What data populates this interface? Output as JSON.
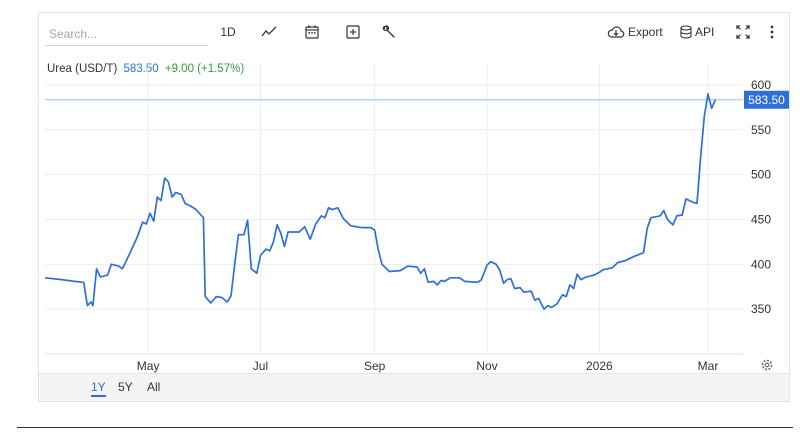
{
  "search": {
    "placeholder": "Search..."
  },
  "toolbar": {
    "interval_label": "1D",
    "export_label": "Export",
    "api_label": "API"
  },
  "legend": {
    "name": "Urea (USD/T)",
    "price": "583.50",
    "change": "+9.00 (+1.57%)"
  },
  "ranges": [
    {
      "label": "1Y",
      "active": true
    },
    {
      "label": "5Y",
      "active": false
    },
    {
      "label": "All",
      "active": false
    }
  ],
  "colors": {
    "line": "#2f6fd6",
    "up": "#2f9e3a",
    "tag": "#2f6fd6"
  },
  "chart_data": {
    "type": "line",
    "title": "",
    "xlabel": "",
    "ylabel": "",
    "y_ticks": [
      350,
      400,
      450,
      500,
      550,
      600
    ],
    "ylim": [
      300,
      610
    ],
    "x_ticks": [
      "May",
      "Jul",
      "Sep",
      "Nov",
      "2026",
      "Mar"
    ],
    "x_tick_dates": [
      "2025-05-01",
      "2025-07-01",
      "2025-09-01",
      "2025-11-01",
      "2026-01-01",
      "2026-03-01"
    ],
    "xlim": [
      "2025-03-06",
      "2026-03-20"
    ],
    "last_value_label": "583.50",
    "last_value": 583.5,
    "grid": true,
    "series": [
      {
        "values": [
          [
            "2025-03-06",
            385
          ],
          [
            "2025-03-15",
            383
          ],
          [
            "2025-03-22",
            381
          ],
          [
            "2025-03-27",
            380
          ],
          [
            "2025-03-29",
            354
          ],
          [
            "2025-03-31",
            358
          ],
          [
            "2025-04-01",
            354
          ],
          [
            "2025-04-03",
            395
          ],
          [
            "2025-04-05",
            386
          ],
          [
            "2025-04-09",
            388
          ],
          [
            "2025-04-11",
            400
          ],
          [
            "2025-04-15",
            398
          ],
          [
            "2025-04-17",
            395
          ],
          [
            "2025-04-21",
            412
          ],
          [
            "2025-04-25",
            430
          ],
          [
            "2025-04-28",
            447
          ],
          [
            "2025-04-30",
            445
          ],
          [
            "2025-05-02",
            457
          ],
          [
            "2025-05-04",
            448
          ],
          [
            "2025-05-06",
            475
          ],
          [
            "2025-05-08",
            471
          ],
          [
            "2025-05-10",
            496
          ],
          [
            "2025-05-12",
            492
          ],
          [
            "2025-05-14",
            475
          ],
          [
            "2025-05-16",
            480
          ],
          [
            "2025-05-19",
            478
          ],
          [
            "2025-05-21",
            468
          ],
          [
            "2025-05-24",
            465
          ],
          [
            "2025-05-27",
            461
          ],
          [
            "2025-05-31",
            452
          ],
          [
            "2025-06-01",
            364
          ],
          [
            "2025-06-04",
            357
          ],
          [
            "2025-06-07",
            364
          ],
          [
            "2025-06-10",
            363
          ],
          [
            "2025-06-13",
            358
          ],
          [
            "2025-06-15",
            365
          ],
          [
            "2025-06-17",
            400
          ],
          [
            "2025-06-19",
            433
          ],
          [
            "2025-06-22",
            433
          ],
          [
            "2025-06-24",
            449
          ],
          [
            "2025-06-26",
            395
          ],
          [
            "2025-06-29",
            390
          ],
          [
            "2025-07-01",
            410
          ],
          [
            "2025-07-04",
            417
          ],
          [
            "2025-07-06",
            415
          ],
          [
            "2025-07-08",
            425
          ],
          [
            "2025-07-10",
            444
          ],
          [
            "2025-07-12",
            435
          ],
          [
            "2025-07-14",
            420
          ],
          [
            "2025-07-16",
            436
          ],
          [
            "2025-07-22",
            436
          ],
          [
            "2025-07-25",
            442
          ],
          [
            "2025-07-28",
            428
          ],
          [
            "2025-07-31",
            445
          ],
          [
            "2025-08-03",
            454
          ],
          [
            "2025-08-05",
            452
          ],
          [
            "2025-08-07",
            463
          ],
          [
            "2025-08-09",
            461
          ],
          [
            "2025-08-12",
            463
          ],
          [
            "2025-08-15",
            451
          ],
          [
            "2025-08-19",
            443
          ],
          [
            "2025-08-25",
            441
          ],
          [
            "2025-08-30",
            441
          ],
          [
            "2025-09-01",
            438
          ],
          [
            "2025-09-03",
            416
          ],
          [
            "2025-09-05",
            400
          ],
          [
            "2025-09-09",
            392
          ],
          [
            "2025-09-15",
            393
          ],
          [
            "2025-09-19",
            398
          ],
          [
            "2025-09-24",
            397
          ],
          [
            "2025-09-26",
            390
          ],
          [
            "2025-09-28",
            395
          ],
          [
            "2025-09-30",
            380
          ],
          [
            "2025-10-03",
            381
          ],
          [
            "2025-10-05",
            377
          ],
          [
            "2025-10-07",
            382
          ],
          [
            "2025-10-09",
            381
          ],
          [
            "2025-10-12",
            385
          ],
          [
            "2025-10-17",
            385
          ],
          [
            "2025-10-20",
            381
          ],
          [
            "2025-10-27",
            380
          ],
          [
            "2025-10-29",
            383
          ],
          [
            "2025-11-01",
            399
          ],
          [
            "2025-11-03",
            403
          ],
          [
            "2025-11-06",
            400
          ],
          [
            "2025-11-08",
            393
          ],
          [
            "2025-11-10",
            379
          ],
          [
            "2025-11-12",
            383
          ],
          [
            "2025-11-14",
            384
          ],
          [
            "2025-11-16",
            373
          ],
          [
            "2025-11-19",
            374
          ],
          [
            "2025-11-21",
            369
          ],
          [
            "2025-11-25",
            370
          ],
          [
            "2025-11-27",
            360
          ],
          [
            "2025-11-29",
            362
          ],
          [
            "2025-12-02",
            350
          ],
          [
            "2025-12-04",
            354
          ],
          [
            "2025-12-06",
            352
          ],
          [
            "2025-12-09",
            356
          ],
          [
            "2025-12-12",
            366
          ],
          [
            "2025-12-14",
            364
          ],
          [
            "2025-12-16",
            377
          ],
          [
            "2025-12-18",
            373
          ],
          [
            "2025-12-20",
            389
          ],
          [
            "2025-12-22",
            383
          ],
          [
            "2025-12-25",
            386
          ],
          [
            "2025-12-29",
            388
          ],
          [
            "2026-01-01",
            391
          ],
          [
            "2026-01-03",
            394
          ],
          [
            "2026-01-08",
            396
          ],
          [
            "2026-01-11",
            402
          ],
          [
            "2026-01-15",
            404
          ],
          [
            "2026-01-20",
            409
          ],
          [
            "2026-01-25",
            413
          ],
          [
            "2026-01-27",
            440
          ],
          [
            "2026-01-29",
            452
          ],
          [
            "2026-02-03",
            454
          ],
          [
            "2026-02-05",
            460
          ],
          [
            "2026-02-07",
            450
          ],
          [
            "2026-02-10",
            444
          ],
          [
            "2026-02-12",
            454
          ],
          [
            "2026-02-15",
            455
          ],
          [
            "2026-02-17",
            473
          ],
          [
            "2026-02-21",
            469
          ],
          [
            "2026-02-23",
            468
          ],
          [
            "2026-02-25",
            519
          ],
          [
            "2026-02-27",
            565
          ],
          [
            "2026-03-01",
            590
          ],
          [
            "2026-03-03",
            574
          ],
          [
            "2026-03-05",
            583.5
          ]
        ]
      }
    ]
  }
}
